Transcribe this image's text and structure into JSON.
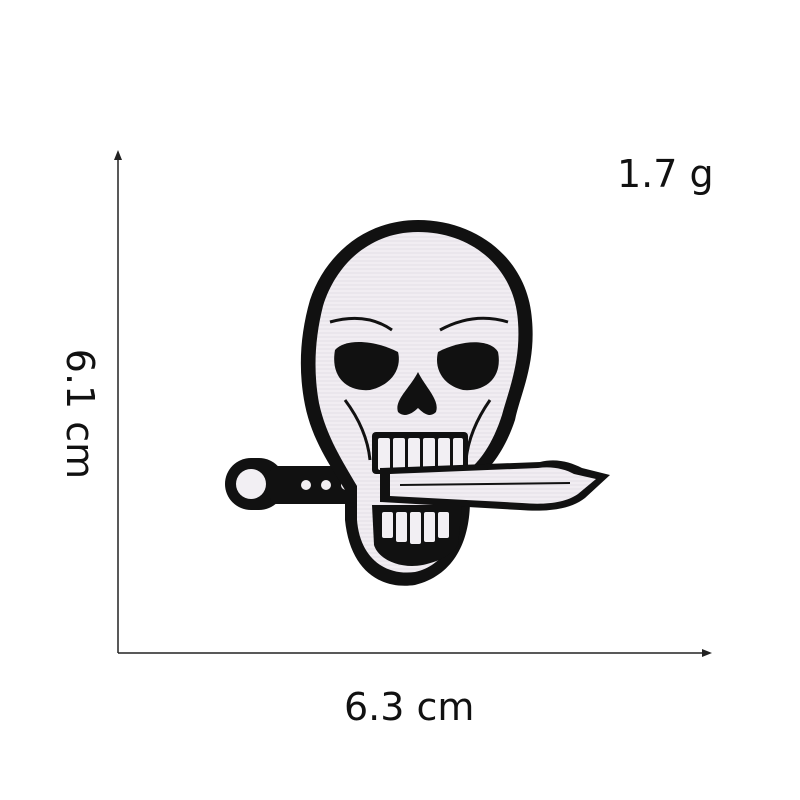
{
  "product": {
    "weight": "1.7 g",
    "width": "6.3 cm",
    "height": "6.1 cm",
    "image_icon": "skull-with-knife-embroidered-patch"
  },
  "colors": {
    "thread_black": "#111111",
    "thread_white": "#f2eff3",
    "axis": "#222222"
  }
}
